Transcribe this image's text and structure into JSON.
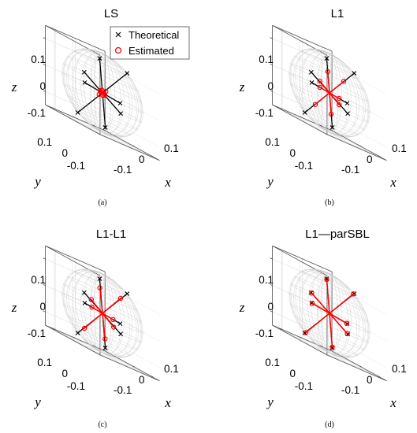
{
  "legend": {
    "theoretical": "Theoretical",
    "estimated": "Estimated"
  },
  "colors": {
    "theoretical": "#000000",
    "estimated": "#ff0000",
    "box": "#4d4d4d",
    "grid": "#e3e3e3",
    "sphere": "#c9c9c9"
  },
  "chart_data": [
    {
      "type": "scatter",
      "title": "LS",
      "caption": "(a)",
      "xlabel": "x",
      "ylabel": "y",
      "zlabel": "z",
      "xlim": [
        -0.15,
        0.15
      ],
      "ylim": [
        -0.15,
        0.15
      ],
      "zlim": [
        -0.15,
        0.15
      ],
      "x_ticks": [
        "-0.1",
        "0",
        "0.1"
      ],
      "y_ticks": [
        "-0.1",
        "0",
        "0.1"
      ],
      "z_ticks": [
        "-0.1",
        "0",
        "0.1"
      ],
      "grid": true,
      "legend_position": "top",
      "series": [
        {
          "name": "Theoretical",
          "marker": "x",
          "lines": [
            [
              [
                0.07,
                -0.06,
                0.12
              ],
              [
                -0.07,
                0.06,
                -0.12
              ]
            ],
            [
              [
                0.05,
                0.06,
                0.13
              ],
              [
                -0.05,
                -0.06,
                -0.13
              ]
            ],
            [
              [
                0.13,
                0.03,
                0.0
              ],
              [
                -0.13,
                -0.03,
                0.0
              ]
            ],
            [
              [
                0.02,
                0.11,
                0.05
              ],
              [
                -0.02,
                -0.11,
                -0.05
              ]
            ]
          ]
        },
        {
          "name": "Estimated",
          "marker": "o",
          "lines": [
            [
              [
                0.01,
                -0.008,
                0.012
              ],
              [
                -0.01,
                0.008,
                -0.012
              ]
            ],
            [
              [
                0.008,
                0.01,
                0.01
              ],
              [
                -0.008,
                -0.01,
                -0.01
              ]
            ],
            [
              [
                0.015,
                0.004,
                0.0
              ],
              [
                -0.015,
                -0.004,
                0.0
              ]
            ],
            [
              [
                0.004,
                0.014,
                0.006
              ],
              [
                -0.004,
                -0.014,
                -0.006
              ]
            ]
          ]
        }
      ]
    },
    {
      "type": "scatter",
      "title": "L1",
      "caption": "(b)",
      "xlabel": "x",
      "ylabel": "y",
      "zlabel": "z",
      "xlim": [
        -0.15,
        0.15
      ],
      "ylim": [
        -0.15,
        0.15
      ],
      "zlim": [
        -0.15,
        0.15
      ],
      "x_ticks": [
        "-0.1",
        "0",
        "0.1"
      ],
      "y_ticks": [
        "-0.1",
        "0",
        "0.1"
      ],
      "z_ticks": [
        "-0.1",
        "0",
        "0.1"
      ],
      "grid": true,
      "series": [
        {
          "name": "Theoretical",
          "marker": "x",
          "lines": [
            [
              [
                0.07,
                -0.06,
                0.12
              ],
              [
                -0.07,
                0.06,
                -0.12
              ]
            ],
            [
              [
                0.05,
                0.06,
                0.13
              ],
              [
                -0.05,
                -0.06,
                -0.13
              ]
            ],
            [
              [
                0.13,
                0.03,
                0.0
              ],
              [
                -0.13,
                -0.03,
                0.0
              ]
            ],
            [
              [
                0.02,
                0.11,
                0.05
              ],
              [
                -0.02,
                -0.11,
                -0.05
              ]
            ]
          ]
        },
        {
          "name": "Estimated",
          "marker": "o",
          "lines": [
            [
              [
                0.04,
                -0.035,
                0.07
              ],
              [
                -0.04,
                0.035,
                -0.07
              ]
            ],
            [
              [
                0.03,
                0.036,
                0.08
              ],
              [
                -0.03,
                -0.036,
                -0.08
              ]
            ],
            [
              [
                0.07,
                0.016,
                0.0
              ],
              [
                -0.07,
                -0.016,
                0.0
              ]
            ],
            [
              [
                0.012,
                0.06,
                0.03
              ],
              [
                -0.012,
                -0.06,
                -0.03
              ]
            ]
          ]
        }
      ]
    },
    {
      "type": "scatter",
      "title": "L1-L1",
      "caption": "(c)",
      "xlabel": "x",
      "ylabel": "y",
      "zlabel": "z",
      "xlim": [
        -0.15,
        0.15
      ],
      "ylim": [
        -0.15,
        0.15
      ],
      "zlim": [
        -0.15,
        0.15
      ],
      "x_ticks": [
        "-0.1",
        "0",
        "0.1"
      ],
      "y_ticks": [
        "-0.1",
        "0",
        "0.1"
      ],
      "z_ticks": [
        "-0.1",
        "0",
        "0.1"
      ],
      "grid": true,
      "series": [
        {
          "name": "Theoretical",
          "marker": "x",
          "lines": [
            [
              [
                0.07,
                -0.06,
                0.12
              ],
              [
                -0.07,
                0.06,
                -0.12
              ]
            ],
            [
              [
                0.05,
                0.06,
                0.13
              ],
              [
                -0.05,
                -0.06,
                -0.13
              ]
            ],
            [
              [
                0.13,
                0.03,
                0.0
              ],
              [
                -0.13,
                -0.03,
                0.0
              ]
            ],
            [
              [
                0.02,
                0.11,
                0.05
              ],
              [
                -0.02,
                -0.11,
                -0.05
              ]
            ]
          ]
        },
        {
          "name": "Estimated",
          "marker": "o",
          "lines": [
            [
              [
                0.05,
                -0.045,
                0.09
              ],
              [
                -0.05,
                0.045,
                -0.09
              ]
            ],
            [
              [
                0.035,
                0.045,
                0.095
              ],
              [
                -0.035,
                -0.045,
                -0.095
              ]
            ],
            [
              [
                0.08,
                0.02,
                0.0
              ],
              [
                -0.08,
                -0.02,
                0.0
              ]
            ],
            [
              [
                0.015,
                0.07,
                0.035
              ],
              [
                -0.015,
                -0.07,
                -0.035
              ]
            ]
          ]
        }
      ]
    },
    {
      "type": "scatter",
      "title": "L1—parSBL",
      "caption": "(d)",
      "xlabel": "x",
      "ylabel": "y",
      "zlabel": "z",
      "xlim": [
        -0.15,
        0.15
      ],
      "ylim": [
        -0.15,
        0.15
      ],
      "zlim": [
        -0.15,
        0.15
      ],
      "x_ticks": [
        "-0.1",
        "0",
        "0.1"
      ],
      "y_ticks": [
        "-0.1",
        "0",
        "0.1"
      ],
      "z_ticks": [
        "-0.1",
        "0",
        "0.1"
      ],
      "grid": true,
      "series": [
        {
          "name": "Theoretical",
          "marker": "x",
          "lines": [
            [
              [
                0.07,
                -0.06,
                0.12
              ],
              [
                -0.07,
                0.06,
                -0.12
              ]
            ],
            [
              [
                0.05,
                0.06,
                0.13
              ],
              [
                -0.05,
                -0.06,
                -0.13
              ]
            ],
            [
              [
                0.13,
                0.03,
                0.0
              ],
              [
                -0.13,
                -0.03,
                0.0
              ]
            ],
            [
              [
                0.02,
                0.11,
                0.05
              ],
              [
                -0.02,
                -0.11,
                -0.05
              ]
            ]
          ]
        },
        {
          "name": "Estimated",
          "marker": "o",
          "lines": [
            [
              [
                0.068,
                -0.058,
                0.118
              ],
              [
                -0.068,
                0.058,
                -0.118
              ]
            ],
            [
              [
                0.048,
                0.058,
                0.127
              ],
              [
                -0.048,
                -0.058,
                -0.127
              ]
            ],
            [
              [
                0.126,
                0.029,
                0.0
              ],
              [
                -0.126,
                -0.029,
                0.0
              ]
            ],
            [
              [
                0.019,
                0.107,
                0.049
              ],
              [
                -0.019,
                -0.107,
                -0.049
              ]
            ]
          ]
        }
      ]
    }
  ]
}
